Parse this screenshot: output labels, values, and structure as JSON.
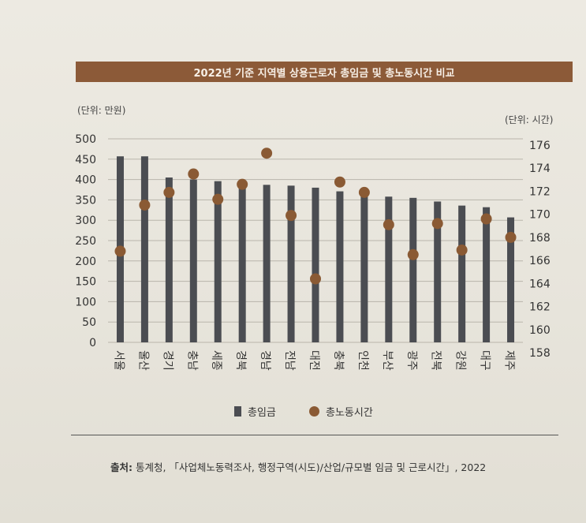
{
  "title": "2022년 기준 지역별 상용근로자 총임금 및 총노동시간 비교",
  "unit_left": "(단위: 만원)",
  "unit_right": "(단위: 시간)",
  "legend": {
    "bar": "총임금",
    "dot": "총노동시간"
  },
  "source": {
    "label": "출처:",
    "text": "통계청, 「사업체노동력조사, 행정구역(시도)/산업/규모별 임금 및 근로시간」, 2022"
  },
  "colors": {
    "bar": "#4b4d52",
    "dot": "#8a5a34",
    "title_bg": "#8c5a38"
  },
  "chart_data": {
    "type": "bar",
    "categories": [
      "서울",
      "울산",
      "경기",
      "충남",
      "세종",
      "경북",
      "경남",
      "전남",
      "대전",
      "충북",
      "인천",
      "부산",
      "광주",
      "전북",
      "강원",
      "대구",
      "제주"
    ],
    "series": [
      {
        "name": "총임금",
        "type": "bar",
        "axis": "left",
        "values": [
          457,
          457,
          405,
          400,
          396,
          389,
          387,
          385,
          380,
          371,
          364,
          358,
          355,
          346,
          336,
          332,
          307
        ]
      },
      {
        "name": "총노동시간",
        "type": "scatter",
        "axis": "right",
        "values": [
          166.8,
          170.8,
          171.9,
          173.5,
          171.3,
          172.6,
          175.3,
          169.9,
          164.4,
          172.8,
          171.9,
          169.1,
          166.5,
          169.2,
          166.9,
          169.6,
          168.0
        ]
      }
    ],
    "left_axis": {
      "ylim": [
        0,
        500
      ],
      "ticks": [
        0,
        50,
        100,
        150,
        200,
        250,
        300,
        350,
        400,
        450,
        500
      ]
    },
    "right_axis": {
      "ylim": [
        158,
        176
      ],
      "ticks": [
        158,
        160,
        162,
        164,
        166,
        168,
        170,
        172,
        174,
        176
      ]
    },
    "grid": false,
    "legend_position": "bottom"
  }
}
